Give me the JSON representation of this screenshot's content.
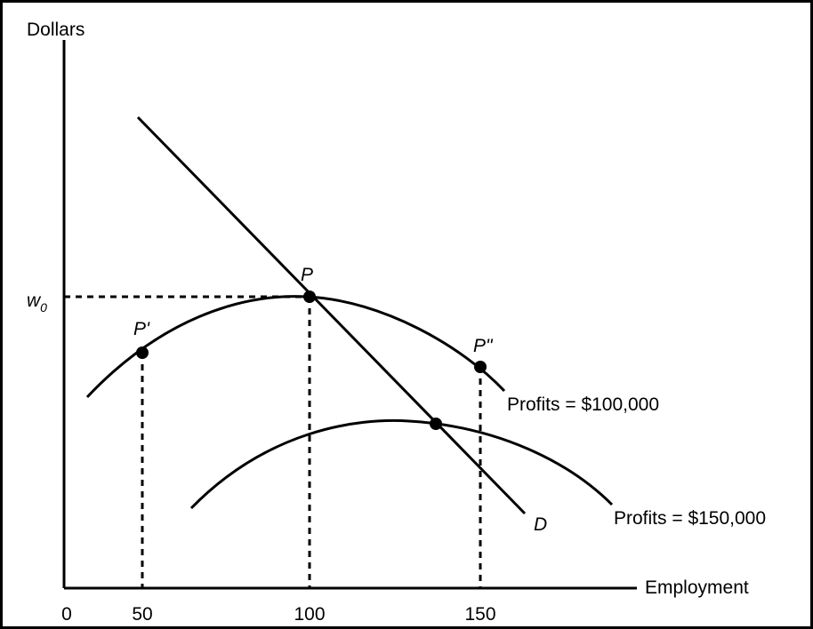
{
  "axes": {
    "y_label": "Dollars",
    "x_label": "Employment",
    "wage_label": "w",
    "wage_subscript": "0",
    "x_ticks": [
      "0",
      "50",
      "100",
      "150"
    ]
  },
  "points": [
    "P'",
    "P",
    "P\""
  ],
  "curves": [
    "Profits = $100,000",
    "Profits = $150,000"
  ],
  "demand_label": "D"
}
